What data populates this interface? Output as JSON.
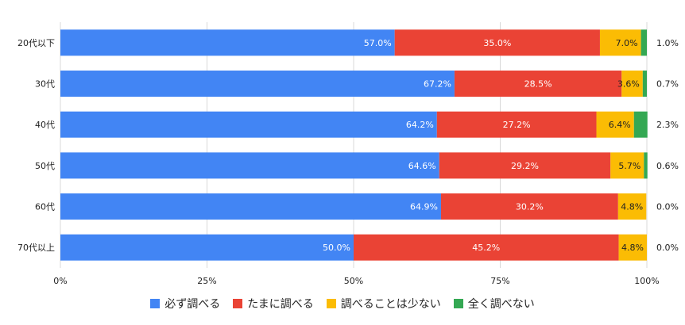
{
  "chart_data": {
    "type": "bar",
    "orientation": "horizontal",
    "stacked": true,
    "categories": [
      "20代以下",
      "30代",
      "40代",
      "50代",
      "60代",
      "70代以上"
    ],
    "series": [
      {
        "name": "必ず調べる",
        "color": "#4285F4",
        "values": [
          57.0,
          67.2,
          64.2,
          64.6,
          64.9,
          50.0
        ],
        "labels": [
          "57.0%",
          "67.2%",
          "64.2%",
          "64.6%",
          "64.9%",
          "50.0%"
        ]
      },
      {
        "name": "たまに調べる",
        "color": "#EA4335",
        "values": [
          35.0,
          28.5,
          27.2,
          29.2,
          30.2,
          45.2
        ],
        "labels": [
          "35.0%",
          "28.5%",
          "27.2%",
          "29.2%",
          "30.2%",
          "45.2%"
        ]
      },
      {
        "name": "調べることは少ない",
        "color": "#FBBC04",
        "values": [
          7.0,
          3.6,
          6.4,
          5.7,
          4.8,
          4.8
        ],
        "labels": [
          "7.0%",
          "3.6%",
          "6.4%",
          "5.7%",
          "4.8%",
          "4.8%"
        ]
      },
      {
        "name": "全く調べない",
        "color": "#34A853",
        "values": [
          1.0,
          0.7,
          2.3,
          0.6,
          0.0,
          0.0
        ],
        "labels": [
          "1.0%",
          "0.7%",
          "2.3%",
          "0.6%",
          "0.0%",
          "0.0%"
        ]
      }
    ],
    "xlim": [
      0,
      100
    ],
    "x_ticks": [
      "0%",
      "25%",
      "50%",
      "75%",
      "100%"
    ],
    "legend_position": "bottom",
    "grid": true
  }
}
